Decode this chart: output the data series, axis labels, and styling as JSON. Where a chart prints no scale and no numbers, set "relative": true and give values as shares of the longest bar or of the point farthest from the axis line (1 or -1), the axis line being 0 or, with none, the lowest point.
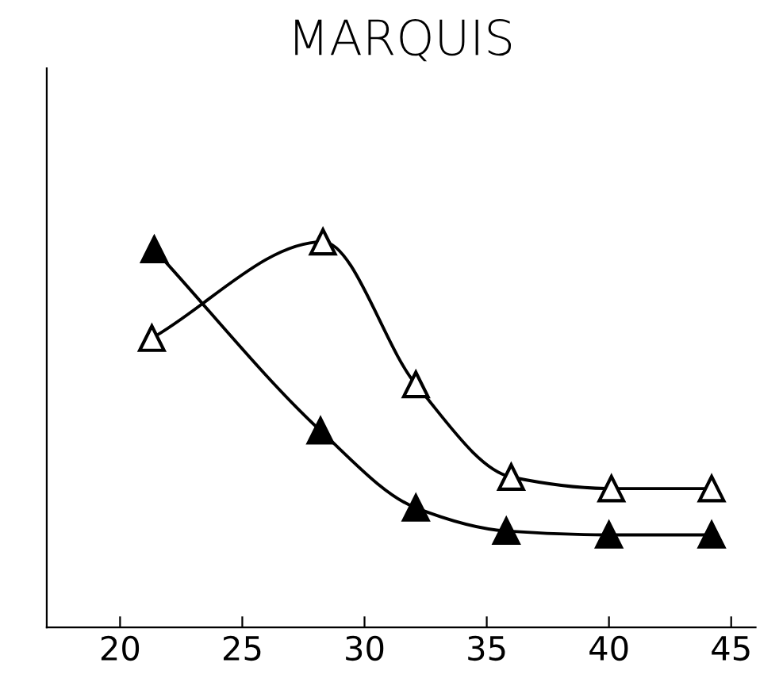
{
  "chart_data": {
    "type": "line",
    "title": "MARQUIS",
    "relative": true,
    "marker": "triangle",
    "line_style": "solid",
    "grid": false,
    "tick_labels": "x",
    "xlim": [
      17,
      46
    ],
    "xticks": [
      20,
      25,
      30,
      35,
      40,
      45
    ],
    "series": [
      {
        "color": "#000000",
        "x": [
          21.4,
          28.2,
          32.1,
          35.8,
          40,
          44.2
        ],
        "values": [
          0.98,
          0.51,
          0.31,
          0.25,
          0.24,
          0.24
        ]
      },
      {
        "color": "#ffffff",
        "x": [
          21.3,
          28.3,
          32.1,
          36,
          40.1,
          44.2
        ],
        "values": [
          0.75,
          1,
          0.63,
          0.39,
          0.36,
          0.36
        ]
      }
    ]
  }
}
